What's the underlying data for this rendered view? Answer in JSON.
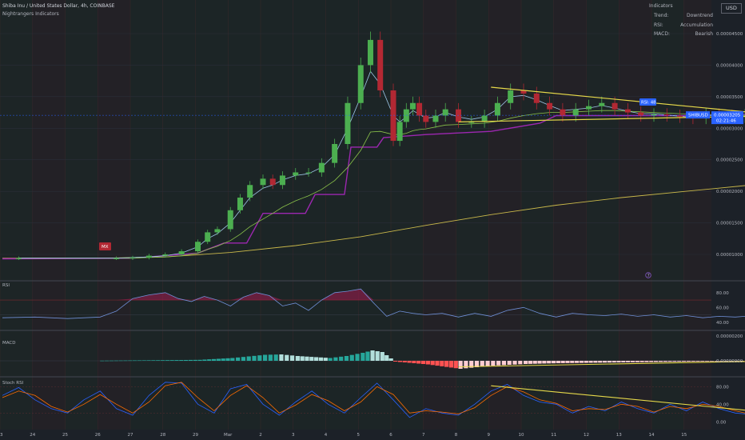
{
  "header": {
    "symbol_line": "Shiba Inu / United States Dollar, 4h, COINBASE",
    "indicator_line": "Nightrangers Indicators"
  },
  "currency": "USD",
  "indicator_table": {
    "title": "Indicators",
    "rows": [
      {
        "name": "Trend:",
        "value": "Downtrend"
      },
      {
        "name": "RSI:",
        "value": "Accumulation"
      },
      {
        "name": "MACD:",
        "value": "Bearish"
      }
    ]
  },
  "price_tag": {
    "symbol": "SHIBUSD",
    "price": "0.00003205",
    "countdown": "02:21:46"
  },
  "rsi_badge": "RSI: 48",
  "mx_label": "MX",
  "event_marker": "7",
  "pane_labels": {
    "rsi": "RSI",
    "macd": "MACD",
    "stoch": "Stoch RSI"
  },
  "colors": {
    "bull": "#26a69a",
    "bear": "#b22833",
    "trend_line": "#e6d94a",
    "purple": "#9c27b0",
    "accent_blue": "#2962ff"
  },
  "chart_data": [
    {
      "type": "candlestick",
      "title": "Shiba Inu / United States Dollar, 4h, COINBASE",
      "x_ticks": [
        "23",
        "24",
        "25",
        "26",
        "27",
        "28",
        "29",
        "Mar",
        "2",
        "3",
        "4",
        "5",
        "6",
        "7",
        "8",
        "9",
        "10",
        "11",
        "12",
        "13",
        "14",
        "15"
      ],
      "y_ticks": [
        "0.00004500",
        "0.00004000",
        "0.00003500",
        "0.00003000",
        "0.00002500",
        "0.00002000",
        "0.00001500",
        "0.00001000"
      ],
      "ylim": [
        7.3e-06,
        4.75e-05
      ],
      "last_price": 3.205e-05,
      "series": [
        {
          "name": "price",
          "x": [
            23.5,
            26.5,
            27.0,
            27.5,
            28.0,
            28.5,
            29.0,
            29.3,
            29.6,
            30.0,
            30.3,
            30.6,
            31.0,
            31.3,
            31.6,
            32.0,
            32.4,
            32.8,
            33.2,
            33.6,
            34.0,
            34.3,
            34.6,
            35.0,
            35.2,
            35.4,
            35.6,
            35.8,
            36.0,
            36.3,
            36.6,
            37.0,
            37.4,
            37.8,
            38.2,
            38.6,
            39.0,
            39.4,
            39.8,
            40.2,
            40.6,
            41.0,
            41.4,
            41.8,
            42.2,
            42.6,
            43.0,
            43.4,
            43.8,
            44.2,
            44.6,
            45.0,
            45.4,
            45.8
          ],
          "values": [
            9.4e-06,
            9.4e-06,
            9.5e-06,
            9.8e-06,
            1e-05,
            1.05e-05,
            1.2e-05,
            1.35e-05,
            1.4e-05,
            1.7e-05,
            1.9e-05,
            2.1e-05,
            2.2e-05,
            2.1e-05,
            2.25e-05,
            2.3e-05,
            2.3e-05,
            2.45e-05,
            2.75e-05,
            3.4e-05,
            4e-05,
            4.4e-05,
            3.6e-05,
            2.8e-05,
            3.1e-05,
            3.3e-05,
            3.4e-05,
            3.2e-05,
            3.1e-05,
            3.2e-05,
            3.3e-05,
            3.1e-05,
            3.1e-05,
            3.2e-05,
            3.4e-05,
            3.6e-05,
            3.55e-05,
            3.4e-05,
            3.3e-05,
            3.2e-05,
            3.3e-05,
            3.35e-05,
            3.4e-05,
            3.3e-05,
            3.25e-05,
            3.2e-05,
            3.22e-05,
            3.2e-05,
            3.18e-05,
            3.16e-05,
            3.22e-05,
            3.2e-05,
            3.18e-05,
            3.21e-05
          ]
        },
        {
          "name": "fast MA",
          "values": [
            9.4e-06,
            9.4e-06,
            9.5e-06,
            9.6e-06,
            9.8e-06,
            1.02e-05,
            1.12e-05,
            1.25e-05,
            1.33e-05,
            1.5e-05,
            1.7e-05,
            1.9e-05,
            2.05e-05,
            2.1e-05,
            2.18e-05,
            2.25e-05,
            2.28e-05,
            2.38e-05,
            2.58e-05,
            3e-05,
            3.5e-05,
            3.9e-05,
            3.7e-05,
            3.2e-05,
            3.1e-05,
            3.18e-05,
            3.28e-05,
            3.22e-05,
            3.16e-05,
            3.18e-05,
            3.25e-05,
            3.18e-05,
            3.14e-05,
            3.18e-05,
            3.3e-05,
            3.5e-05,
            3.52e-05,
            3.45e-05,
            3.36e-05,
            3.28e-05,
            3.3e-05,
            3.32e-05,
            3.36e-05,
            3.32e-05,
            3.27e-05,
            3.23e-05,
            3.23e-05,
            3.21e-05,
            3.19e-05,
            3.17e-05,
            3.2e-05,
            3.2e-05,
            3.19e-05,
            3.2e-05
          ]
        },
        {
          "name": "slow MA",
          "values": [
            9.4e-06,
            9.4e-06,
            9.4e-06,
            9.5e-06,
            9.6e-06,
            9.8e-06,
            1.02e-05,
            1.08e-05,
            1.13e-05,
            1.22e-05,
            1.32e-05,
            1.44e-05,
            1.56e-05,
            1.65e-05,
            1.75e-05,
            1.85e-05,
            1.93e-05,
            2.03e-05,
            2.17e-05,
            2.38e-05,
            2.65e-05,
            2.94e-05,
            2.95e-05,
            2.9e-05,
            2.9e-05,
            2.92e-05,
            2.96e-05,
            2.98e-05,
            2.99e-05,
            3.02e-05,
            3.05e-05,
            3.06e-05,
            3.07e-05,
            3.08e-05,
            3.11e-05,
            3.16e-05,
            3.2e-05,
            3.23e-05,
            3.25e-05,
            3.25e-05,
            3.26e-05,
            3.27e-05,
            3.28e-05,
            3.28e-05,
            3.27e-05,
            3.26e-05,
            3.25e-05,
            3.24e-05,
            3.23e-05,
            3.22e-05,
            3.22e-05,
            3.21e-05,
            3.2e-05,
            3.2e-05
          ]
        },
        {
          "name": "long MA",
          "x": [
            23.0,
            26.0,
            28.0,
            30.0,
            32.0,
            34.0,
            36.0,
            38.0,
            40.0,
            42.0,
            44.0,
            45.8
          ],
          "values": [
            9.4e-06,
            9.4e-06,
            9.6e-06,
            1.03e-05,
            1.14e-05,
            1.28e-05,
            1.46e-05,
            1.63e-05,
            1.78e-05,
            1.9e-05,
            2e-05,
            2.09e-05
          ]
        },
        {
          "name": "purple trail",
          "x": [
            23.0,
            27.0,
            29.0,
            29.8,
            30.5,
            31.0,
            32.3,
            32.6,
            33.5,
            33.7,
            34.5,
            34.7,
            36.0,
            38.0,
            39.5,
            40.0,
            41.0,
            44.0,
            45.8
          ],
          "values": [
            9.3e-06,
            9.4e-06,
            1.02e-05,
            1.18e-05,
            1.18e-05,
            1.65e-05,
            1.65e-05,
            1.95e-05,
            1.95e-05,
            2.7e-05,
            2.7e-05,
            2.85e-05,
            2.9e-05,
            2.95e-05,
            3.08e-05,
            3.2e-05,
            3.2e-05,
            3.2e-05,
            3.22e-05
          ]
        }
      ],
      "trend_lines": [
        {
          "name": "upper",
          "x": [
            38.0,
            47.0
          ],
          "values": [
            3.65e-05,
            3.2e-05
          ]
        },
        {
          "name": "lower",
          "x": [
            37.0,
            47.0
          ],
          "values": [
            3.1e-05,
            3.2e-05
          ]
        }
      ]
    },
    {
      "type": "line",
      "title": "RSI",
      "y_ticks": [
        80.0,
        60.0,
        40.0
      ],
      "ylim": [
        30,
        95
      ],
      "x": [
        23.0,
        24.0,
        25.0,
        26.0,
        26.5,
        27.0,
        27.5,
        28.0,
        28.4,
        28.8,
        29.2,
        29.6,
        30.0,
        30.4,
        30.8,
        31.2,
        31.6,
        32.0,
        32.4,
        32.8,
        33.2,
        33.6,
        34.0,
        34.4,
        34.8,
        35.2,
        35.6,
        36.0,
        36.5,
        37.0,
        37.5,
        38.0,
        38.5,
        39.0,
        39.5,
        40.0,
        40.5,
        41.0,
        41.5,
        42.0,
        42.5,
        43.0,
        43.5,
        44.0,
        44.5,
        45.0,
        45.5,
        45.8
      ],
      "values": [
        46,
        47,
        45,
        47,
        55,
        72,
        77,
        80,
        72,
        68,
        75,
        70,
        62,
        74,
        80,
        76,
        62,
        66,
        56,
        70,
        80,
        82,
        85,
        66,
        48,
        55,
        52,
        50,
        52,
        47,
        52,
        48,
        56,
        60,
        52,
        47,
        52,
        50,
        49,
        51,
        48,
        50,
        47,
        49,
        46,
        48,
        47,
        48
      ],
      "overbought": 70
    },
    {
      "type": "bar",
      "title": "MACD",
      "y_ticks": [
        "0.00000200",
        "0.00000000"
      ],
      "x": [
        26.0,
        27.0,
        28.0,
        29.0,
        30.0,
        30.5,
        31.0,
        31.5,
        32.0,
        33.0,
        33.5,
        34.0,
        34.3,
        34.6,
        35.0,
        36.0,
        37.0,
        37.5,
        38.0,
        38.5,
        39.0,
        40.0,
        41.0,
        42.0,
        43.0,
        44.0,
        45.0,
        45.8
      ],
      "values": [
        0.02,
        0.05,
        0.08,
        0.12,
        0.35,
        0.55,
        0.75,
        0.8,
        0.6,
        0.35,
        0.6,
        1.0,
        1.3,
        1.1,
        -0.1,
        -0.45,
        -1.0,
        -0.8,
        -0.6,
        -0.5,
        -0.4,
        -0.3,
        -0.25,
        -0.2,
        -0.15,
        -0.1,
        -0.06,
        -0.04
      ],
      "unit_scale": "x1e-6",
      "trend_line": {
        "x": [
          37.0,
          47.0
        ],
        "values": [
          -0.75,
          0.0
        ]
      }
    },
    {
      "type": "line",
      "title": "Stoch RSI",
      "y_ticks": [
        80.0,
        40.0,
        0.0
      ],
      "ylim": [
        -5,
        95
      ],
      "x": [
        23.0,
        23.5,
        24.0,
        24.5,
        25.0,
        25.5,
        26.0,
        26.5,
        27.0,
        27.5,
        28.0,
        28.5,
        29.0,
        29.5,
        30.0,
        30.5,
        31.0,
        31.5,
        32.0,
        32.5,
        33.0,
        33.5,
        34.0,
        34.5,
        35.0,
        35.5,
        36.0,
        36.5,
        37.0,
        37.5,
        38.0,
        38.5,
        39.0,
        39.5,
        40.0,
        40.5,
        41.0,
        41.5,
        42.0,
        42.5,
        43.0,
        43.5,
        44.0,
        44.5,
        45.0,
        45.5,
        45.8
      ],
      "series": [
        {
          "name": "K",
          "values": [
            60,
            78,
            50,
            30,
            20,
            50,
            70,
            30,
            15,
            60,
            90,
            88,
            40,
            20,
            75,
            85,
            40,
            15,
            45,
            70,
            40,
            20,
            55,
            88,
            50,
            10,
            30,
            20,
            15,
            40,
            70,
            85,
            60,
            45,
            40,
            20,
            35,
            25,
            45,
            30,
            20,
            40,
            25,
            45,
            30,
            20,
            18
          ]
        },
        {
          "name": "D",
          "values": [
            55,
            70,
            60,
            35,
            22,
            40,
            62,
            40,
            20,
            45,
            82,
            90,
            55,
            25,
            60,
            82,
            55,
            20,
            38,
            62,
            48,
            25,
            45,
            80,
            62,
            20,
            25,
            22,
            18,
            32,
            60,
            80,
            68,
            50,
            42,
            25,
            30,
            28,
            40,
            35,
            22,
            35,
            30,
            40,
            35,
            25,
            20
          ]
        }
      ],
      "trend_line": {
        "x": [
          38.0,
          47.0
        ],
        "values": [
          82.0,
          18.0
        ]
      }
    }
  ]
}
